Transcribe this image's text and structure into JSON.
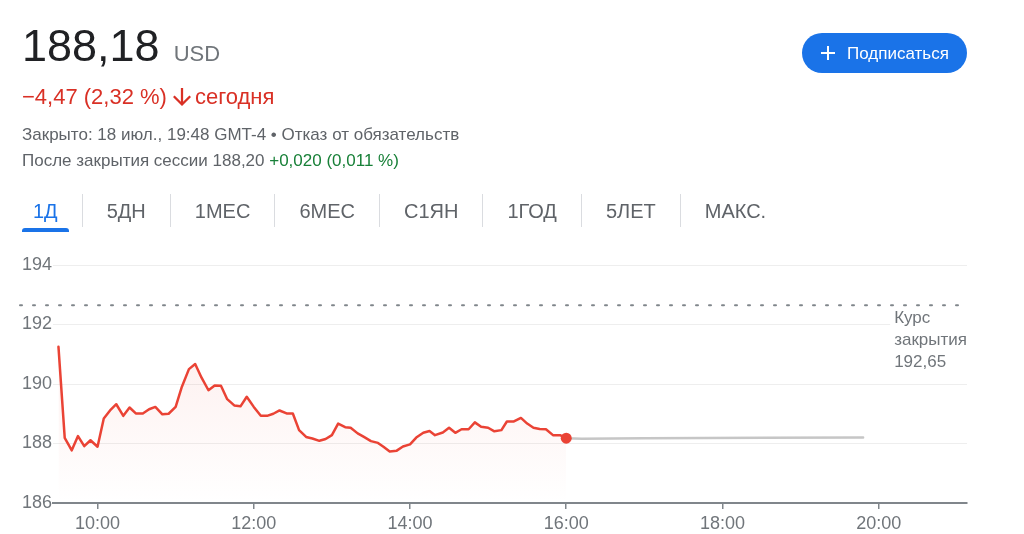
{
  "chart_data": {
    "type": "line",
    "title": "188,18",
    "annotations": [
      "USD",
      "−4,47 (2,32 %)",
      "сегодня",
      "Закрыто: 18 июл., 19:48 GMT-4 • Отказ от обязательств",
      "После закрытия сессии 188,20",
      "+0,020 (0,011 %)",
      "1Д",
      "5ДН",
      "1МЕС",
      "6МЕС",
      "С1ЯН",
      "1ГОД",
      "5ЛЕТ",
      "МАКС.",
      "Подписаться"
    ],
    "series": [
      {
        "type": "area",
        "color": "#ea4335",
        "x": [
          9.5,
          9.58,
          9.67,
          9.75,
          9.83,
          9.91,
          10.0,
          10.08,
          10.17,
          10.24,
          10.33,
          10.41,
          10.49,
          10.58,
          10.66,
          10.74,
          10.83,
          10.91,
          11.0,
          11.08,
          11.17,
          11.25,
          11.33,
          11.42,
          11.5,
          11.58,
          11.66,
          11.75,
          11.83,
          11.91,
          12.0,
          12.09,
          12.17,
          12.25,
          12.33,
          12.42,
          12.5,
          12.58,
          12.67,
          12.75,
          12.84,
          12.92,
          13.0,
          13.08,
          13.17,
          13.24,
          13.33,
          13.41,
          13.5,
          13.59,
          13.66,
          13.74,
          13.83,
          13.91,
          14.0,
          14.08,
          14.17,
          14.25,
          14.32,
          14.42,
          14.5,
          14.58,
          14.66,
          14.75,
          14.83,
          14.91,
          15.0,
          15.08,
          15.17,
          15.24,
          15.33,
          15.42,
          15.5,
          15.58,
          15.66,
          15.74,
          15.83,
          15.92,
          16.0
        ],
        "values": [
          191.25,
          188.19,
          187.77,
          188.25,
          187.91,
          188.11,
          187.89,
          188.84,
          189.14,
          189.32,
          188.93,
          189.21,
          189.01,
          189.01,
          189.15,
          189.23,
          188.98,
          189.0,
          189.23,
          189.91,
          190.5,
          190.67,
          190.22,
          189.79,
          189.95,
          189.94,
          189.49,
          189.28,
          189.25,
          189.57,
          189.23,
          188.93,
          188.93,
          189.0,
          189.11,
          189.01,
          189.01,
          188.45,
          188.22,
          188.17,
          188.09,
          188.15,
          188.28,
          188.67,
          188.55,
          188.53,
          188.34,
          188.22,
          188.08,
          188.02,
          187.89,
          187.73,
          187.76,
          187.9,
          187.97,
          188.2,
          188.36,
          188.42,
          188.28,
          188.37,
          188.53,
          188.36,
          188.48,
          188.48,
          188.71,
          188.56,
          188.53,
          188.41,
          188.45,
          188.74,
          188.74,
          188.86,
          188.67,
          188.53,
          188.49,
          188.48,
          188.28,
          188.28,
          188.18
        ]
      },
      {
        "type": "line",
        "color": "#c6c6c6",
        "x": [
          16.0,
          16.2,
          17.0,
          19.8
        ],
        "values": [
          188.18,
          188.16,
          188.18,
          188.2
        ]
      },
      {
        "type": "scatter",
        "color": "#ea4335",
        "marker": "circle",
        "x": [
          16.0
        ],
        "values": [
          188.18
        ]
      }
    ],
    "xlim": [
      9.43,
      21.13
    ],
    "xticks": [
      {
        "value": 10,
        "label": "10:00"
      },
      {
        "value": 12,
        "label": "12:00"
      },
      {
        "value": 14,
        "label": "14:00"
      },
      {
        "value": 16,
        "label": "16:00"
      },
      {
        "value": 18,
        "label": "18:00"
      },
      {
        "value": 20,
        "label": "20:00"
      }
    ],
    "ylim": [
      186,
      194
    ],
    "yticks": [
      186,
      188,
      190,
      192,
      194
    ],
    "grid": "y",
    "marker": "none",
    "line_style": "solid",
    "ref_lines": [
      {
        "axis": "y",
        "value": 192.65,
        "label": "Курс закрытия 192,65",
        "color": "#80868b",
        "line_style": "dotted"
      }
    ]
  }
}
